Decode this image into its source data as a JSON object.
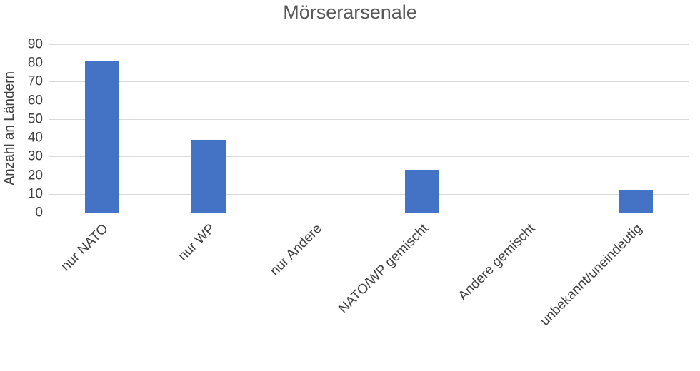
{
  "chart_data": {
    "type": "bar",
    "title": "Mörserarsenale",
    "xlabel": "",
    "ylabel": "Anzahl an Ländern",
    "categories": [
      "nur NATO",
      "nur WP",
      "nur Andere",
      "NATO/WP gemischt",
      "Andere gemischt",
      "unbekannt/uneindeutig"
    ],
    "values": [
      81,
      39,
      0,
      23,
      0,
      12
    ],
    "ylim": [
      0,
      90
    ],
    "yticks": [
      0,
      10,
      20,
      30,
      40,
      50,
      60,
      70,
      80,
      90
    ],
    "grid": true,
    "legend": false,
    "layout_hints": {
      "x_label_rotation_deg": -45,
      "legend_position": "none"
    },
    "colors": {
      "bar": "#4472C4",
      "gridline": "#d9d9d9",
      "axis_line": "#bfbfbf",
      "tick_text": "#404040",
      "title_text": "#595959"
    }
  }
}
